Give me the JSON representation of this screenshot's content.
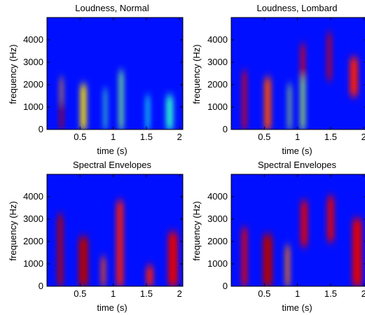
{
  "chart_data": [
    {
      "type": "heatmap",
      "title": "Loudness, Normal",
      "xlabel": "time (s)",
      "ylabel": "frequency (Hz)",
      "xlim": [
        0,
        2.05
      ],
      "ylim": [
        0,
        5000
      ],
      "xticks": [
        0.5,
        1,
        1.5,
        2
      ],
      "xtick_labels": [
        "0.5",
        "1",
        "1.5",
        "2"
      ],
      "yticks": [
        0,
        1000,
        2000,
        3000,
        4000
      ],
      "ytick_labels": [
        "0",
        "1000",
        "2000",
        "3000",
        "4000"
      ],
      "colormap": "jet",
      "energy_columns": [
        {
          "t": 0.22,
          "w": 0.05,
          "lo": 0,
          "hi": 1200,
          "level": 0.95
        },
        {
          "t": 0.22,
          "w": 0.04,
          "lo": 1200,
          "hi": 2300,
          "level": 0.72
        },
        {
          "t": 0.55,
          "w": 0.09,
          "lo": 0,
          "hi": 2000,
          "level": 0.65
        },
        {
          "t": 0.88,
          "w": 0.04,
          "lo": 0,
          "hi": 1800,
          "level": 0.45
        },
        {
          "t": 1.12,
          "w": 0.06,
          "lo": 0,
          "hi": 2600,
          "level": 0.5
        },
        {
          "t": 1.52,
          "w": 0.05,
          "lo": 0,
          "hi": 1500,
          "level": 0.4
        },
        {
          "t": 1.85,
          "w": 0.1,
          "lo": 0,
          "hi": 1500,
          "level": 0.42
        }
      ]
    },
    {
      "type": "heatmap",
      "title": "Loudness, Lombard",
      "xlabel": "time (s)",
      "ylabel": "frequency (Hz)",
      "xlim": [
        0,
        2.05
      ],
      "ylim": [
        0,
        5000
      ],
      "xticks": [
        0.5,
        1,
        1.5,
        2
      ],
      "xtick_labels": [
        "0.5",
        "1",
        "1.5",
        "2"
      ],
      "yticks": [
        0,
        1000,
        2000,
        3000,
        4000
      ],
      "ytick_labels": [
        "0",
        "1000",
        "2000",
        "3000",
        "4000"
      ],
      "colormap": "jet",
      "energy_columns": [
        {
          "t": 0.2,
          "w": 0.06,
          "lo": 0,
          "hi": 2600,
          "level": 0.9
        },
        {
          "t": 0.55,
          "w": 0.1,
          "lo": 0,
          "hi": 2300,
          "level": 0.8
        },
        {
          "t": 0.88,
          "w": 0.04,
          "lo": 0,
          "hi": 2000,
          "level": 0.55
        },
        {
          "t": 1.08,
          "w": 0.06,
          "lo": 2300,
          "hi": 3800,
          "level": 0.9
        },
        {
          "t": 1.08,
          "w": 0.06,
          "lo": 0,
          "hi": 2300,
          "level": 0.55
        },
        {
          "t": 1.48,
          "w": 0.06,
          "lo": 2200,
          "hi": 4300,
          "level": 0.92
        },
        {
          "t": 1.85,
          "w": 0.12,
          "lo": 1500,
          "hi": 3200,
          "level": 0.85
        }
      ]
    },
    {
      "type": "heatmap",
      "title": "Spectral Envelopes",
      "xlabel": "time (s)",
      "ylabel": "frequency (Hz)",
      "xlim": [
        0,
        2.05
      ],
      "ylim": [
        0,
        5000
      ],
      "xticks": [
        0.5,
        1,
        1.5,
        2
      ],
      "xtick_labels": [
        "0.5",
        "1",
        "1.5",
        "2"
      ],
      "yticks": [
        0,
        1000,
        2000,
        3000,
        4000
      ],
      "ytick_labels": [
        "0",
        "1000",
        "2000",
        "3000",
        "4000"
      ],
      "colormap": "jet",
      "energy_columns": [
        {
          "t": 0.2,
          "w": 0.08,
          "lo": 0,
          "hi": 3200,
          "level": 0.95
        },
        {
          "t": 0.55,
          "w": 0.14,
          "lo": 0,
          "hi": 2200,
          "level": 0.95
        },
        {
          "t": 0.85,
          "w": 0.06,
          "lo": 0,
          "hi": 1300,
          "level": 0.8
        },
        {
          "t": 1.1,
          "w": 0.1,
          "lo": 0,
          "hi": 3800,
          "level": 0.85
        },
        {
          "t": 1.55,
          "w": 0.1,
          "lo": 0,
          "hi": 900,
          "level": 0.85
        },
        {
          "t": 1.9,
          "w": 0.14,
          "lo": 0,
          "hi": 2400,
          "level": 0.9
        }
      ]
    },
    {
      "type": "heatmap",
      "title": "Spectral Envelopes",
      "xlabel": "time (s)",
      "ylabel": "frequency (Hz)",
      "xlim": [
        0,
        2.05
      ],
      "ylim": [
        0,
        5000
      ],
      "xticks": [
        0.5,
        1,
        1.5,
        2
      ],
      "xtick_labels": [
        "0.5",
        "1",
        "1.5",
        "2"
      ],
      "yticks": [
        0,
        1000,
        2000,
        3000,
        4000
      ],
      "ytick_labels": [
        "0",
        "1000",
        "2000",
        "3000",
        "4000"
      ],
      "colormap": "jet",
      "energy_columns": [
        {
          "t": 0.2,
          "w": 0.08,
          "lo": 0,
          "hi": 2600,
          "level": 0.9
        },
        {
          "t": 0.55,
          "w": 0.14,
          "lo": 0,
          "hi": 2300,
          "level": 0.95
        },
        {
          "t": 0.85,
          "w": 0.06,
          "lo": 0,
          "hi": 1800,
          "level": 0.75
        },
        {
          "t": 1.1,
          "w": 0.1,
          "lo": 1800,
          "hi": 3800,
          "level": 0.9
        },
        {
          "t": 1.5,
          "w": 0.1,
          "lo": 2000,
          "hi": 4000,
          "level": 0.9
        },
        {
          "t": 1.9,
          "w": 0.14,
          "lo": 0,
          "hi": 3000,
          "level": 0.9
        }
      ]
    }
  ]
}
